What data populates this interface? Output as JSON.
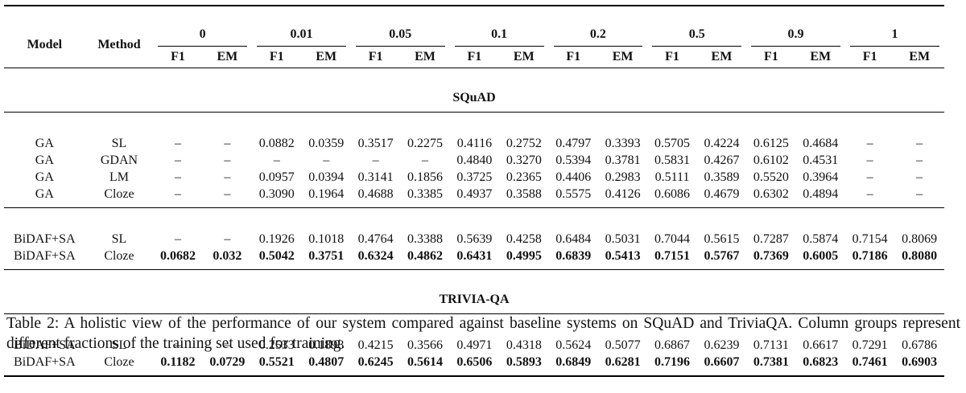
{
  "header": {
    "model_label": "Model",
    "method_label": "Method",
    "fractions": [
      "0",
      "0.01",
      "0.05",
      "0.1",
      "0.2",
      "0.5",
      "0.9",
      "1"
    ],
    "metric_labels": [
      "F1",
      "EM"
    ]
  },
  "sections": [
    {
      "title": "SQuAD",
      "groups": [
        {
          "rows": [
            {
              "model": "GA",
              "method": "SL",
              "bold": false,
              "values": [
                "–",
                "–",
                "0.0882",
                "0.0359",
                "0.3517",
                "0.2275",
                "0.4116",
                "0.2752",
                "0.4797",
                "0.3393",
                "0.5705",
                "0.4224",
                "0.6125",
                "0.4684",
                "–",
                "–"
              ]
            },
            {
              "model": "GA",
              "method": "GDAN",
              "bold": false,
              "values": [
                "–",
                "–",
                "–",
                "–",
                "–",
                "–",
                "0.4840",
                "0.3270",
                "0.5394",
                "0.3781",
                "0.5831",
                "0.4267",
                "0.6102",
                "0.4531",
                "–",
                "–"
              ]
            },
            {
              "model": "GA",
              "method": "LM",
              "bold": false,
              "values": [
                "–",
                "–",
                "0.0957",
                "0.0394",
                "0.3141",
                "0.1856",
                "0.3725",
                "0.2365",
                "0.4406",
                "0.2983",
                "0.5111",
                "0.3589",
                "0.5520",
                "0.3964",
                "–",
                "–"
              ]
            },
            {
              "model": "GA",
              "method": "Cloze",
              "bold": false,
              "values": [
                "–",
                "–",
                "0.3090",
                "0.1964",
                "0.4688",
                "0.3385",
                "0.4937",
                "0.3588",
                "0.5575",
                "0.4126",
                "0.6086",
                "0.4679",
                "0.6302",
                "0.4894",
                "–",
                "–"
              ]
            }
          ]
        },
        {
          "rows": [
            {
              "model": "BiDAF+SA",
              "method": "SL",
              "bold": false,
              "values": [
                "–",
                "–",
                "0.1926",
                "0.1018",
                "0.4764",
                "0.3388",
                "0.5639",
                "0.4258",
                "0.6484",
                "0.5031",
                "0.7044",
                "0.5615",
                "0.7287",
                "0.5874",
                "0.7154",
                "0.8069"
              ]
            },
            {
              "model": "BiDAF+SA",
              "method": "Cloze",
              "bold": true,
              "values": [
                "0.0682",
                "0.032",
                "0.5042",
                "0.3751",
                "0.6324",
                "0.4862",
                "0.6431",
                "0.4995",
                "0.6839",
                "0.5413",
                "0.7151",
                "0.5767",
                "0.7369",
                "0.6005",
                "0.7186",
                "0.8080"
              ]
            }
          ]
        }
      ]
    },
    {
      "title": "TRIVIA-QA",
      "groups": [
        {
          "rows": [
            {
              "model": "BiDAF+SA",
              "method": "SL",
              "bold": false,
              "values": [
                "–",
                "–",
                "0.2533",
                "0.1898",
                "0.4215",
                "0.3566",
                "0.4971",
                "0.4318",
                "0.5624",
                "0.5077",
                "0.6867",
                "0.6239",
                "0.7131",
                "0.6617",
                "0.7291",
                "0.6786"
              ]
            },
            {
              "model": "BiDAF+SA",
              "method": "Cloze",
              "bold": true,
              "values": [
                "0.1182",
                "0.0729",
                "0.5521",
                "0.4807",
                "0.6245",
                "0.5614",
                "0.6506",
                "0.5893",
                "0.6849",
                "0.6281",
                "0.7196",
                "0.6607",
                "0.7381",
                "0.6823",
                "0.7461",
                "0.6903"
              ]
            }
          ]
        }
      ]
    }
  ],
  "caption": "Table 2: A holistic view of the performance of our system compared against baseline systems on SQuAD and TriviaQA. Column groups represent different fractions of the training set used for training."
}
